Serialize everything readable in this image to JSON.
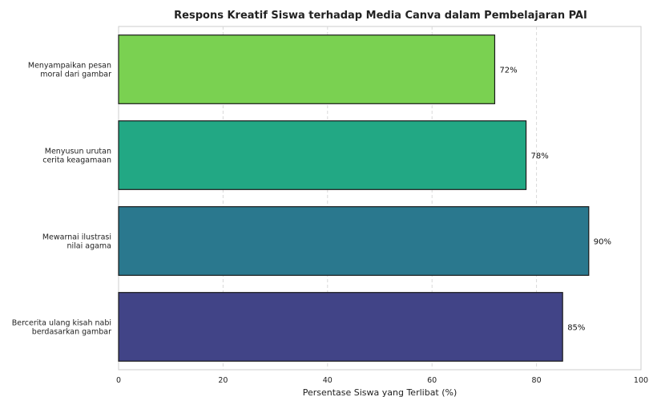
{
  "chart_data": {
    "type": "bar",
    "orientation": "horizontal",
    "title": "Respons Kreatif Siswa terhadap Media Canva dalam Pembelajaran PAI",
    "xlabel": "Persentase Siswa yang Terlibat (%)",
    "ylabel": "",
    "xlim": [
      0,
      100
    ],
    "xticks": [
      "0",
      "20",
      "40",
      "60",
      "80",
      "100"
    ],
    "grid": "x-dashed",
    "categories": [
      [
        "Menyampaikan pesan",
        "moral dari gambar"
      ],
      [
        "Menyusun urutan",
        "cerita keagamaan"
      ],
      [
        "Mewarnai ilustrasi",
        "nilai agama"
      ],
      [
        "Bercerita ulang kisah nabi",
        "berdasarkan gambar"
      ]
    ],
    "values": [
      72,
      78,
      90,
      85
    ],
    "value_labels": [
      "72%",
      "78%",
      "90%",
      "85%"
    ],
    "colors": [
      "#7ad151",
      "#22a884",
      "#2a788e",
      "#414487"
    ]
  }
}
